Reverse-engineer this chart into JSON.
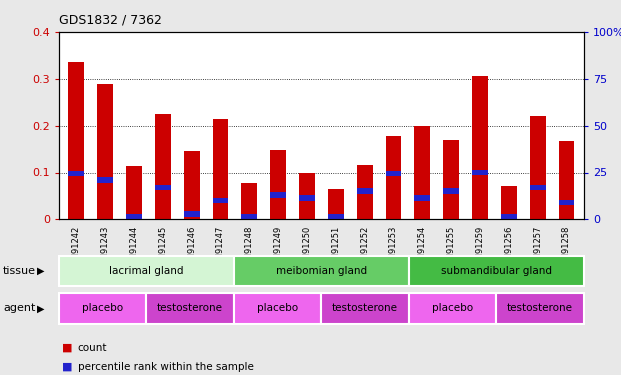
{
  "title": "GDS1832 / 7362",
  "samples": [
    "GSM91242",
    "GSM91243",
    "GSM91244",
    "GSM91245",
    "GSM91246",
    "GSM91247",
    "GSM91248",
    "GSM91249",
    "GSM91250",
    "GSM91251",
    "GSM91252",
    "GSM91253",
    "GSM91254",
    "GSM91255",
    "GSM91259",
    "GSM91256",
    "GSM91257",
    "GSM91258"
  ],
  "count_values": [
    0.335,
    0.288,
    0.113,
    0.225,
    0.145,
    0.215,
    0.077,
    0.148,
    0.1,
    0.065,
    0.115,
    0.178,
    0.2,
    0.17,
    0.305,
    0.072,
    0.22,
    0.168
  ],
  "percentile_values": [
    24.5,
    21.0,
    0.5,
    17.0,
    3.0,
    10.0,
    0.0,
    13.0,
    11.5,
    1.5,
    15.0,
    24.5,
    11.5,
    15.0,
    25.0,
    0.5,
    17.0,
    9.0
  ],
  "bar_color": "#cc0000",
  "percentile_color": "#2222cc",
  "bar_width": 0.55,
  "ylim_left": [
    0,
    0.4
  ],
  "ylim_right": [
    0,
    100
  ],
  "yticks_left": [
    0,
    0.1,
    0.2,
    0.3,
    0.4
  ],
  "yticks_right": [
    0,
    25,
    50,
    75,
    100
  ],
  "ytick_labels_left": [
    "0",
    "0.1",
    "0.2",
    "0.3",
    "0.4"
  ],
  "ytick_labels_right": [
    "0",
    "25",
    "50",
    "75",
    "100%"
  ],
  "grid_yticks": [
    0.1,
    0.2,
    0.3
  ],
  "tissue_groups": [
    {
      "label": "lacrimal gland",
      "start": 0,
      "end": 6,
      "color": "#d4f5d4"
    },
    {
      "label": "meibomian gland",
      "start": 6,
      "end": 12,
      "color": "#66cc66"
    },
    {
      "label": "submandibular gland",
      "start": 12,
      "end": 18,
      "color": "#44bb44"
    }
  ],
  "agent_groups": [
    {
      "label": "placebo",
      "start": 0,
      "end": 3,
      "color": "#ee66ee"
    },
    {
      "label": "testosterone",
      "start": 3,
      "end": 6,
      "color": "#cc44cc"
    },
    {
      "label": "placebo",
      "start": 6,
      "end": 9,
      "color": "#ee66ee"
    },
    {
      "label": "testosterone",
      "start": 9,
      "end": 12,
      "color": "#cc44cc"
    },
    {
      "label": "placebo",
      "start": 12,
      "end": 15,
      "color": "#ee66ee"
    },
    {
      "label": "testosterone",
      "start": 15,
      "end": 18,
      "color": "#cc44cc"
    }
  ],
  "tissue_label": "tissue",
  "agent_label": "agent",
  "legend_count_label": "count",
  "legend_percentile_label": "percentile rank within the sample",
  "background_color": "#e8e8e8",
  "plot_bg": "#ffffff",
  "tick_label_color_left": "#cc0000",
  "tick_label_color_right": "#0000cc"
}
